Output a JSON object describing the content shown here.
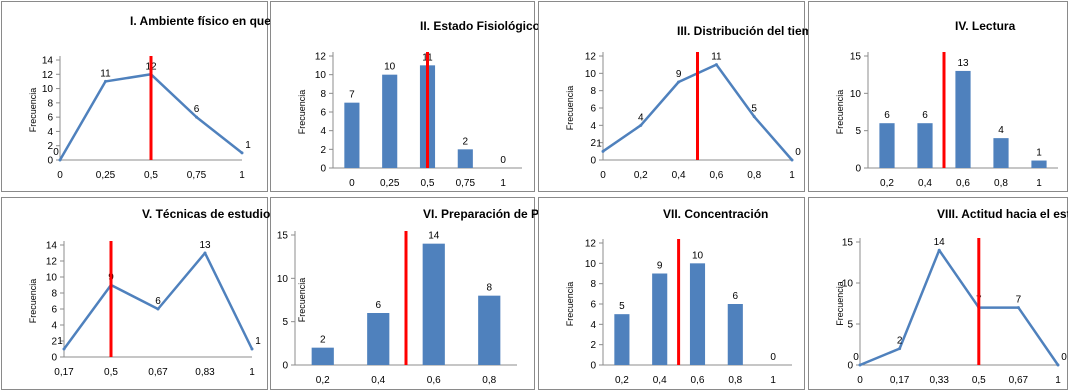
{
  "colors": {
    "series": "#4f81bd",
    "marker": "#ff0000"
  },
  "chart_data": [
    {
      "type": "line",
      "title": "I. Ambiente físico en que estudia",
      "ylabel": "Frecuencia",
      "categories": [
        "0",
        "0,25",
        "0,5",
        "0,75",
        "1"
      ],
      "values": [
        0,
        11,
        12,
        6,
        1
      ],
      "ylim": [
        0,
        14
      ],
      "yticks": [
        0,
        2,
        4,
        6,
        8,
        10,
        12,
        14
      ],
      "marker_at": 0.5
    },
    {
      "type": "bar",
      "title": "II. Estado Fisiológico",
      "ylabel": "Frecuencia",
      "categories": [
        "0",
        "0,25",
        "0,5",
        "0,75",
        "1"
      ],
      "values": [
        7,
        10,
        11,
        2,
        0
      ],
      "ylim": [
        0,
        12
      ],
      "yticks": [
        0,
        2,
        4,
        6,
        8,
        10,
        12
      ],
      "marker_at": 0.5
    },
    {
      "type": "line",
      "title": "III. Distribución del tiempo",
      "ylabel": "Frecuencia",
      "categories": [
        "0",
        "0,2",
        "0,4",
        "0,6",
        "0,8",
        "1"
      ],
      "values": [
        1,
        4,
        9,
        11,
        5,
        0
      ],
      "ylim": [
        0,
        12
      ],
      "yticks": [
        0,
        2,
        4,
        6,
        8,
        10,
        12
      ],
      "marker_at": 0.5
    },
    {
      "type": "bar",
      "title": "IV. Lectura",
      "ylabel": "Frecuencia",
      "categories": [
        "0,2",
        "0,4",
        "0,6",
        "0,8",
        "1"
      ],
      "values": [
        6,
        6,
        13,
        4,
        1
      ],
      "ylim": [
        0,
        15
      ],
      "yticks": [
        0,
        5,
        10,
        15
      ],
      "marker_at": 0.5
    },
    {
      "type": "line",
      "title": "V. Técnicas de estudio",
      "ylabel": "Frecuencia",
      "categories": [
        "0,17",
        "0,5",
        "0,67",
        "0,83",
        "1"
      ],
      "values": [
        1,
        9,
        6,
        13,
        1
      ],
      "ylim": [
        0,
        14
      ],
      "yticks": [
        0,
        2,
        4,
        6,
        8,
        10,
        12,
        14
      ],
      "marker_at": 0.5
    },
    {
      "type": "bar",
      "title": "VI. Preparación de Pruebas",
      "ylabel": "Frecuencia",
      "categories": [
        "0,2",
        "0,4",
        "0,6",
        "0,8"
      ],
      "values": [
        2,
        6,
        14,
        8
      ],
      "ylim": [
        0,
        15
      ],
      "yticks": [
        0,
        5,
        10,
        15
      ],
      "marker_at": 0.5
    },
    {
      "type": "bar",
      "title": "VII. Concentración",
      "ylabel": "Frecuencia",
      "categories": [
        "0,2",
        "0,4",
        "0,6",
        "0,8",
        "1"
      ],
      "values": [
        5,
        9,
        10,
        6,
        0
      ],
      "ylim": [
        0,
        12
      ],
      "yticks": [
        0,
        2,
        4,
        6,
        8,
        10,
        12
      ],
      "marker_at": 0.5
    },
    {
      "type": "line",
      "title": "VIII. Actitud hacia el estudio",
      "ylabel": "Frecuencia",
      "categories": [
        "0",
        "0,17",
        "0,33",
        "0,5",
        "0,67",
        "1"
      ],
      "values": [
        0,
        2,
        14,
        7,
        7,
        0
      ],
      "ylim": [
        0,
        15
      ],
      "yticks": [
        0,
        5,
        10,
        15
      ],
      "marker_at": 0.5
    }
  ]
}
